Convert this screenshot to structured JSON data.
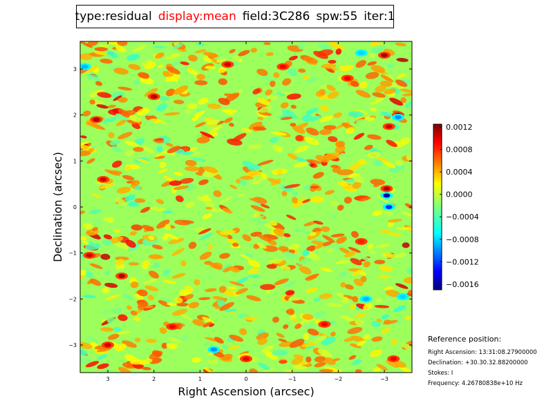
{
  "header": {
    "items": [
      {
        "text": "type:residual",
        "color": "#000000"
      },
      {
        "text": "display:mean",
        "color": "#ff0000"
      },
      {
        "text": "field:3C286",
        "color": "#000000"
      },
      {
        "text": "spw:55",
        "color": "#000000"
      },
      {
        "text": "iter:1",
        "color": "#000000"
      }
    ]
  },
  "reference": {
    "title": "Reference position:",
    "ra": "Right Ascension: 13:31:08.27900000",
    "dec": "Declination: +30.30.32.88200000",
    "stokes": "Stokes: I",
    "frequency": "Frequency: 4.26780838e+10 Hz"
  },
  "chart_data": {
    "type": "heatmap",
    "title": "",
    "xlabel": "Right Ascension (arcsec)",
    "ylabel": "Declination (arcsec)",
    "xlim": [
      3.6,
      -3.6
    ],
    "ylim": [
      -3.6,
      3.6
    ],
    "xticks": [
      3,
      2,
      1,
      0,
      -1,
      -2,
      -3
    ],
    "xtick_labels": [
      "3",
      "2",
      "1",
      "0",
      "−1",
      "−2",
      "−3"
    ],
    "yticks": [
      3,
      2,
      1,
      0,
      -1,
      -2,
      -3
    ],
    "ytick_labels": [
      "3",
      "2",
      "1",
      "0",
      "−1",
      "−2",
      "−3"
    ],
    "colormap": "jet",
    "colorbar": {
      "vmin": -0.0017,
      "vmax": 0.00125,
      "ticks": [
        0.0012,
        0.0008,
        0.0004,
        0.0,
        -0.0004,
        -0.0008,
        -0.0012,
        -0.0016
      ],
      "tick_labels": [
        "0.0012",
        "0.0008",
        "0.0004",
        "0.0000",
        "−0.0004",
        "−0.0008",
        "−0.0012",
        "−0.0016"
      ]
    },
    "grid": false,
    "hotspots": [
      {
        "ra": 3.25,
        "dec": 1.9,
        "value": 0.0011
      },
      {
        "ra": 2.0,
        "dec": 2.4,
        "value": 0.0011
      },
      {
        "ra": 3.1,
        "dec": 0.6,
        "value": 0.001
      },
      {
        "ra": 2.7,
        "dec": -1.5,
        "value": 0.0011
      },
      {
        "ra": 3.4,
        "dec": -1.05,
        "value": 0.001
      },
      {
        "ra": 1.6,
        "dec": -2.6,
        "value": 0.0009
      },
      {
        "ra": 0.4,
        "dec": 3.1,
        "value": 0.001
      },
      {
        "ra": -0.8,
        "dec": 3.05,
        "value": 0.0009
      },
      {
        "ra": -2.2,
        "dec": 2.8,
        "value": 0.0009
      },
      {
        "ra": -3.0,
        "dec": 3.3,
        "value": 0.0011
      },
      {
        "ra": -3.3,
        "dec": 2.0,
        "value": 0.0012
      },
      {
        "ra": -3.1,
        "dec": 1.75,
        "value": 0.001
      },
      {
        "ra": -3.05,
        "dec": 0.4,
        "value": 0.0011
      },
      {
        "ra": -2.5,
        "dec": -0.75,
        "value": 0.0008
      },
      {
        "ra": -1.7,
        "dec": -2.55,
        "value": 0.0009
      },
      {
        "ra": -3.2,
        "dec": -3.3,
        "value": 0.0009
      },
      {
        "ra": 0.0,
        "dec": -3.3,
        "value": 0.0009
      },
      {
        "ra": 3.0,
        "dec": -3.0,
        "value": 0.001
      }
    ],
    "coldspots": [
      {
        "ra": -3.05,
        "dec": 0.25,
        "value": -0.0016
      },
      {
        "ra": -3.1,
        "dec": 0.0,
        "value": -0.0012
      },
      {
        "ra": -3.3,
        "dec": 1.95,
        "value": -0.0009
      },
      {
        "ra": -2.6,
        "dec": -2.0,
        "value": -0.0008
      },
      {
        "ra": 0.7,
        "dec": -3.1,
        "value": -0.0009
      },
      {
        "ra": 3.5,
        "dec": 3.05,
        "value": -0.0008
      },
      {
        "ra": -2.5,
        "dec": 3.35,
        "value": -0.0007
      },
      {
        "ra": -3.4,
        "dec": -1.95,
        "value": -0.0007
      }
    ]
  }
}
